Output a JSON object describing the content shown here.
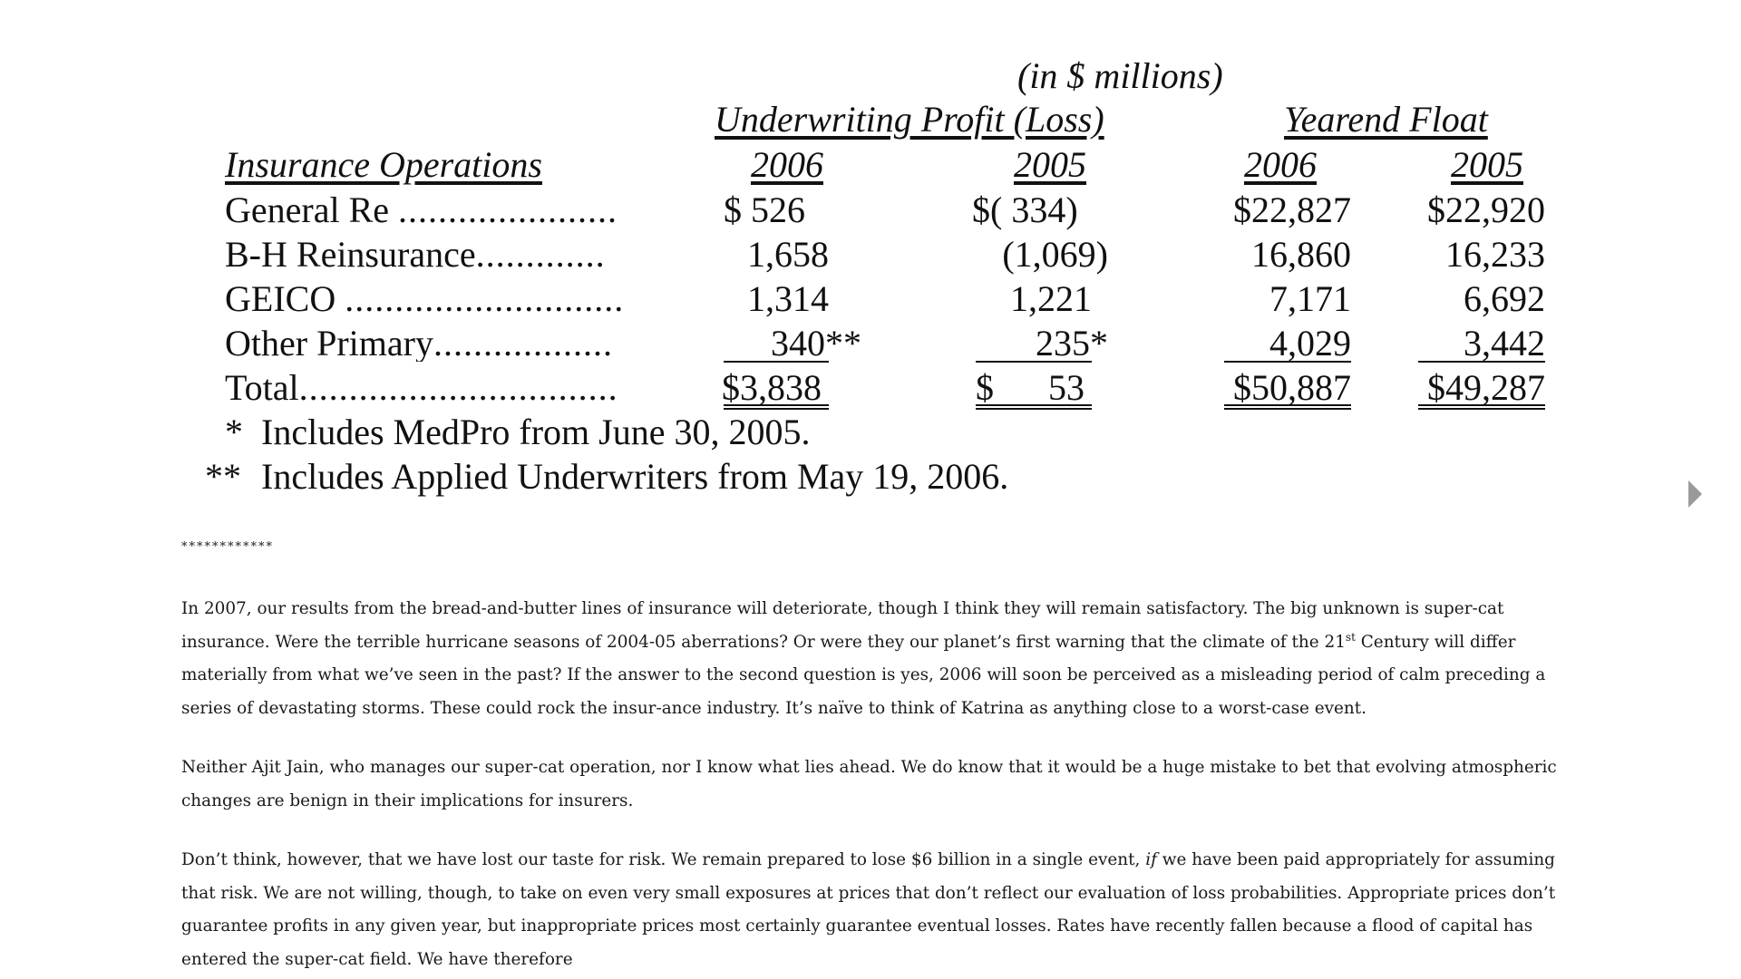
{
  "table": {
    "units": "(in $ millions)",
    "group_underwriting": "Underwriting Profit (Loss)",
    "group_float": "Yearend Float",
    "row_header": "Insurance Operations",
    "col_years": [
      "2006",
      "2005",
      "2006",
      "2005"
    ],
    "rows": [
      {
        "label": "General Re",
        "dots": "......................",
        "uw2006": "$   526",
        "uw2005": "$(   334)",
        "fl2006": "$22,827",
        "fl2005": "$22,920"
      },
      {
        "label": "B-H Reinsurance",
        "dots": ".............",
        "uw2006": "1,658",
        "uw2005": "(1,069)",
        "fl2006": "16,860",
        "fl2005": "16,233"
      },
      {
        "label": "GEICO",
        "dots": "............................",
        "uw2006": "1,314",
        "uw2005": "1,221",
        "fl2006": "7,171",
        "fl2005": "6,692"
      },
      {
        "label": "Other Primary",
        "dots": "..................",
        "uw2006": "340**",
        "uw2005": "235*",
        "fl2006": "4,029",
        "fl2005": "3,442"
      },
      {
        "label": "Total",
        "dots": "................................",
        "uw2006": "$3,838",
        "uw2005": "$      53",
        "fl2006": "$50,887",
        "fl2005": "$49,287"
      }
    ],
    "footnotes": [
      {
        "mark": "*",
        "text": "Includes MedPro from June 30, 2005."
      },
      {
        "mark": "**",
        "text": "Includes Applied Underwriters from May 19, 2006."
      }
    ]
  },
  "separator": "************",
  "paragraphs": {
    "p1_a": "In 2007, our results from the bread-and-butter lines of insurance will deteriorate, though I think they will remain satisfactory. The big unknown is super-cat insurance. Were the terrible hurricane seasons of 2004-05 aberrations? Or were they our planet’s first warning that the climate of the 21",
    "p1_sup": "st",
    "p1_b": " Century will differ materially from what we’ve seen in the past? If the answer to the second question is yes, 2006 will soon be perceived as a misleading period of calm preceding a series of devastating storms. These could rock the insur-ance industry. It’s naïve to think of Katrina as anything close to a worst-case event.",
    "p2": "Neither Ajit Jain, who manages our super-cat operation, nor I know what lies ahead. We do know that it would be a huge mistake to bet that evolving atmospheric changes are benign in their implications for insurers.",
    "p3_a": "Don’t think, however, that we have lost our taste for risk. We remain prepared to lose $6 billion in a single event, ",
    "p3_em": "if",
    "p3_b": " we have been paid appropriately for assuming that risk. We are not willing, though, to take on even very small exposures at prices that don’t reflect our evaluation of loss probabilities. Appropriate prices don’t guarantee profits in any given year, but inappropriate prices most certainly guarantee eventual losses. Rates have recently fallen because a flood of capital has entered the super-cat field. We have therefore"
  },
  "icons": {
    "next": "chevron-right-icon"
  }
}
